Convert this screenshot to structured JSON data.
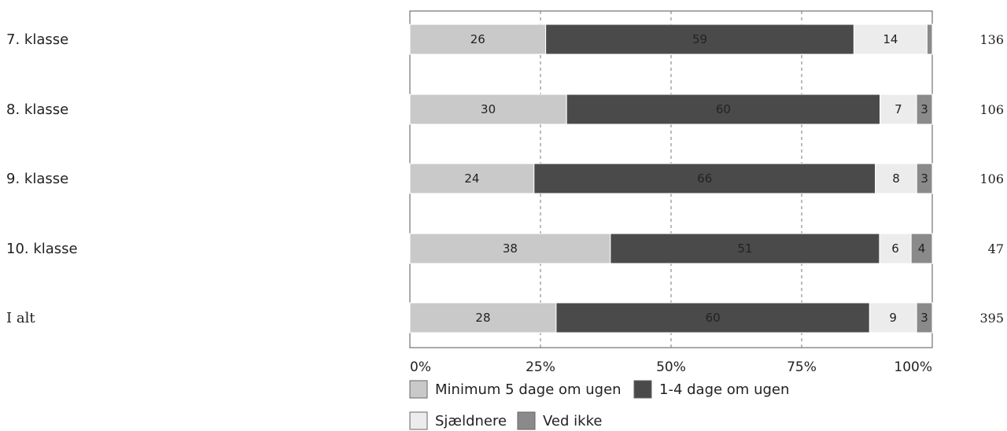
{
  "chart_data": {
    "type": "bar",
    "orientation": "horizontal",
    "stacked": "percent",
    "categories": [
      "7. klasse",
      "8. klasse",
      "9. klasse",
      "10. klasse",
      "I alt"
    ],
    "n_values": [
      "136",
      "106",
      "106",
      "47",
      "395"
    ],
    "series": [
      {
        "name": "Minimum 5 dage om ugen",
        "color": "#c9c9c9",
        "values": [
          26,
          30,
          24,
          38,
          28
        ]
      },
      {
        "name": "1-4 dage om ugen",
        "color": "#4a4a4a",
        "values": [
          59,
          60,
          66,
          51,
          60
        ]
      },
      {
        "name": "Sjældnere",
        "color": "#ececec",
        "values": [
          14,
          7,
          8,
          6,
          9
        ]
      },
      {
        "name": "Ved ikke",
        "color": "#8a8a8a",
        "values": [
          1,
          3,
          3,
          4,
          3
        ]
      }
    ],
    "data_labels": [
      [
        "26",
        "59",
        "14",
        ""
      ],
      [
        "30",
        "60",
        "7",
        "3"
      ],
      [
        "24",
        "66",
        "8",
        "3"
      ],
      [
        "38",
        "51",
        "6",
        "4"
      ],
      [
        "28",
        "60",
        "9",
        "3"
      ]
    ],
    "x_ticks": [
      "0%",
      "25%",
      "50%",
      "75%",
      "100%"
    ],
    "xlim": [
      0,
      100
    ],
    "grid": "vertical dashed",
    "legend_position": "bottom"
  }
}
